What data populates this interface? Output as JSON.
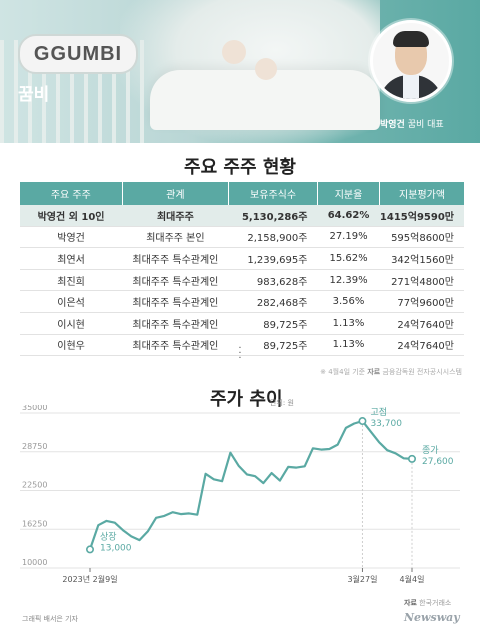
{
  "header": {
    "brand_en": "GGUMBI",
    "brand_ko": "꿈비",
    "ceo_name": "박영건",
    "ceo_title": "꿈비 대표"
  },
  "holders": {
    "title": "주요 주주 현황",
    "columns": [
      "주요 주주",
      "관계",
      "보유주식수",
      "지분율",
      "지분평가액"
    ],
    "rows": [
      [
        "박영건 외 10인",
        "최대주주",
        "5,130,286주",
        "64.62%",
        "1415억9590만"
      ],
      [
        "박영건",
        "최대주주 본인",
        "2,158,900주",
        "27.19%",
        "595억8600만"
      ],
      [
        "최연서",
        "최대주주 특수관계인",
        "1,239,695주",
        "15.62%",
        "342억1560만"
      ],
      [
        "최진희",
        "최대주주 특수관계인",
        "983,628주",
        "12.39%",
        "271억4800만"
      ],
      [
        "이은석",
        "최대주주 특수관계인",
        "282,468주",
        "3.56%",
        "77억9600만"
      ],
      [
        "이시현",
        "최대주주 특수관계인",
        "89,725주",
        "1.13%",
        "24억7640만"
      ],
      [
        "이현우",
        "최대주주 특수관계인",
        "89,725주",
        "1.13%",
        "24억7640만"
      ]
    ],
    "note_date": "※ 4월4일 기준",
    "note_source_label": "자료",
    "note_source": "금융감독원 전자공시시스템"
  },
  "stock": {
    "title": "주가 추이",
    "unit": "단위: 원",
    "source_label": "자료",
    "source": "한국거래소"
  },
  "chart_data": {
    "type": "line",
    "title": "주가 추이",
    "ylabel": "원",
    "ylim": [
      10000,
      35000
    ],
    "yticks": [
      10000,
      16250,
      22500,
      28750,
      35000
    ],
    "ytick_labels": [
      "10000",
      "16250",
      "22500",
      "28750",
      "35000"
    ],
    "xtick_labels": [
      {
        "index": 0,
        "label": "2023년 2월9일"
      },
      {
        "index": 33,
        "label": "3월27일"
      },
      {
        "index": 39,
        "label": "4월4일"
      }
    ],
    "grid": true,
    "color": "#5aa9a3",
    "values": [
      13000,
      16900,
      17600,
      17300,
      16100,
      15100,
      14500,
      15900,
      18100,
      18400,
      19000,
      18700,
      18800,
      18600,
      25200,
      24300,
      24000,
      28600,
      26500,
      25100,
      24800,
      23700,
      25300,
      24100,
      26300,
      26200,
      26400,
      29300,
      29100,
      29200,
      29900,
      32600,
      33300,
      33700,
      32000,
      30300,
      29000,
      28500,
      27700,
      27600
    ],
    "annotations": [
      {
        "index": 0,
        "label": "상장",
        "value_label": "13,000"
      },
      {
        "index": 33,
        "label": "고점",
        "value_label": "33,700"
      },
      {
        "index": 39,
        "label": "종가",
        "value_label": "27,600"
      }
    ]
  },
  "footer": {
    "credit": "그래픽 배서은 기자",
    "brand": "Newsway"
  }
}
